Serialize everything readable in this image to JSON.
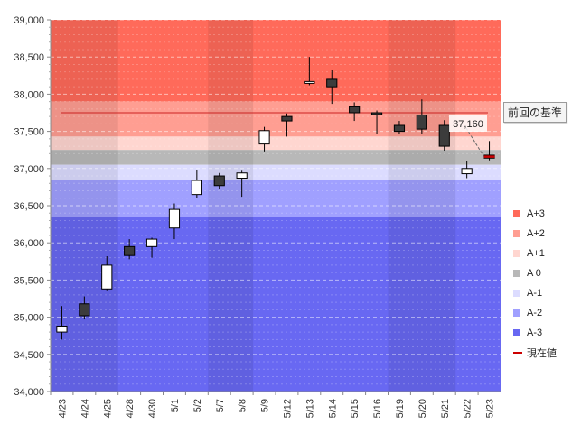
{
  "chart_data": {
    "type": "candlestick",
    "categories": [
      "4/23",
      "4/24",
      "4/25",
      "4/28",
      "4/30",
      "5/1",
      "5/2",
      "5/7",
      "5/8",
      "5/9",
      "5/12",
      "5/13",
      "5/14",
      "5/15",
      "5/16",
      "5/19",
      "5/20",
      "5/21",
      "5/22",
      "5/23"
    ],
    "ohlc": [
      {
        "x": "4/23",
        "open": 34800,
        "high": 35150,
        "low": 34700,
        "close": 34880
      },
      {
        "x": "4/24",
        "open": 35180,
        "high": 35280,
        "low": 34970,
        "close": 35020
      },
      {
        "x": "4/25",
        "open": 35380,
        "high": 35820,
        "low": 35350,
        "close": 35700
      },
      {
        "x": "4/28",
        "open": 35950,
        "high": 36050,
        "low": 35780,
        "close": 35830
      },
      {
        "x": "4/30",
        "open": 35950,
        "high": 36070,
        "low": 35800,
        "close": 36050
      },
      {
        "x": "5/1",
        "open": 36200,
        "high": 36530,
        "low": 36050,
        "close": 36450
      },
      {
        "x": "5/2",
        "open": 36650,
        "high": 36980,
        "low": 36600,
        "close": 36840
      },
      {
        "x": "5/7",
        "open": 36900,
        "high": 36940,
        "low": 36720,
        "close": 36770
      },
      {
        "x": "5/8",
        "open": 36870,
        "high": 36970,
        "low": 36620,
        "close": 36940
      },
      {
        "x": "5/9",
        "open": 37330,
        "high": 37560,
        "low": 37230,
        "close": 37510
      },
      {
        "x": "5/12",
        "open": 37700,
        "high": 37740,
        "low": 37430,
        "close": 37640
      },
      {
        "x": "5/13",
        "open": 38150,
        "high": 38500,
        "low": 38120,
        "close": 38170
      },
      {
        "x": "5/14",
        "open": 38200,
        "high": 38320,
        "low": 37870,
        "close": 38100
      },
      {
        "x": "5/15",
        "open": 37830,
        "high": 37890,
        "low": 37640,
        "close": 37750
      },
      {
        "x": "5/16",
        "open": 37750,
        "high": 37780,
        "low": 37470,
        "close": 37740
      },
      {
        "x": "5/19",
        "open": 37580,
        "high": 37640,
        "low": 37460,
        "close": 37500
      },
      {
        "x": "5/20",
        "open": 37720,
        "high": 37930,
        "low": 37460,
        "close": 37530
      },
      {
        "x": "5/21",
        "open": 37580,
        "high": 37650,
        "low": 37240,
        "close": 37300
      },
      {
        "x": "5/22",
        "open": 36930,
        "high": 37100,
        "low": 36870,
        "close": 37000
      },
      {
        "x": "5/23",
        "open": 37180,
        "high": 37370,
        "low": 37110,
        "close": 37140
      }
    ],
    "ylim": [
      34000,
      39000
    ],
    "y_ticks": [
      "34,000",
      "34,500",
      "35,000",
      "35,500",
      "36,000",
      "36,500",
      "37,000",
      "37,500",
      "38,000",
      "38,500",
      "39,000"
    ],
    "bands": [
      {
        "name": "A+3",
        "from": 37900,
        "to": 39000,
        "color": "#ff6a5a"
      },
      {
        "name": "A+2",
        "from": 37430,
        "to": 37900,
        "color": "#ff9e92"
      },
      {
        "name": "A+1",
        "from": 37250,
        "to": 37430,
        "color": "#ffd6d0"
      },
      {
        "name": "A 0",
        "from": 37050,
        "to": 37250,
        "color": "#b8b8b8"
      },
      {
        "name": "A-1",
        "from": 36850,
        "to": 37050,
        "color": "#dcdcff"
      },
      {
        "name": "A-2",
        "from": 36350,
        "to": 36850,
        "color": "#a0a0ff"
      },
      {
        "name": "A-3",
        "from": 34000,
        "to": 36350,
        "color": "#6868f2"
      }
    ],
    "reference_line": {
      "label": "前回の基準",
      "value": 37750,
      "color": "#cc2222"
    },
    "current_value": {
      "label": "現在値",
      "value": 37160,
      "text": "37,160",
      "color": "#cc0000"
    },
    "legend": [
      "A+3",
      "A+2",
      "A+1",
      "A 0",
      "A-1",
      "A-2",
      "A-3",
      "現在値"
    ],
    "legend_position": "right",
    "grid": true
  }
}
